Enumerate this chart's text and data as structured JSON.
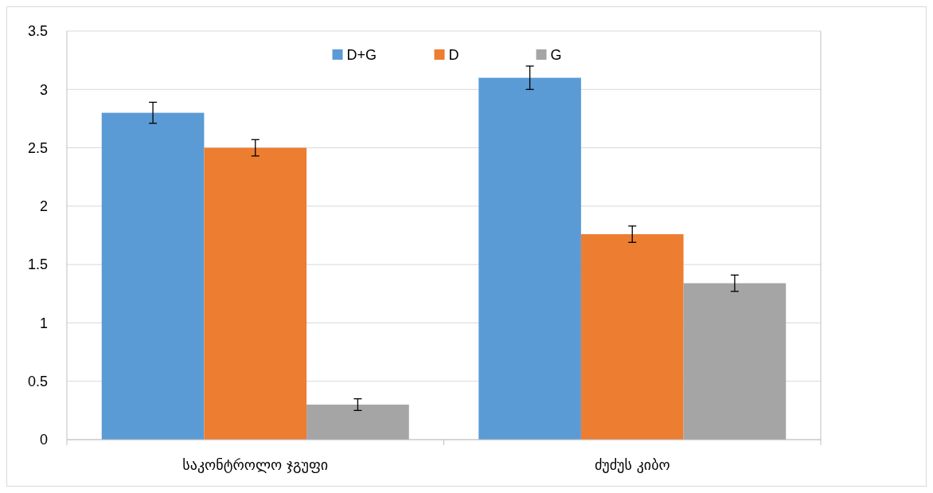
{
  "chart_data": {
    "type": "bar",
    "categories": [
      "საკონტროლო ჯგუფი",
      "ძუძუს კიბო"
    ],
    "series": [
      {
        "name": "D+G",
        "color": "#5b9bd5",
        "values": [
          2.8,
          3.1
        ],
        "errors": [
          0.09,
          0.1
        ]
      },
      {
        "name": "D",
        "color": "#ed7d31",
        "values": [
          2.5,
          1.76
        ],
        "errors": [
          0.07,
          0.07
        ]
      },
      {
        "name": "G",
        "color": "#a5a5a5",
        "values": [
          0.3,
          1.34
        ],
        "errors": [
          0.05,
          0.07
        ]
      }
    ],
    "ylim": [
      0,
      3.5
    ],
    "yticks": [
      0,
      0.5,
      1,
      1.5,
      2,
      2.5,
      3,
      3.5
    ],
    "grid": "y",
    "legend": "top"
  }
}
